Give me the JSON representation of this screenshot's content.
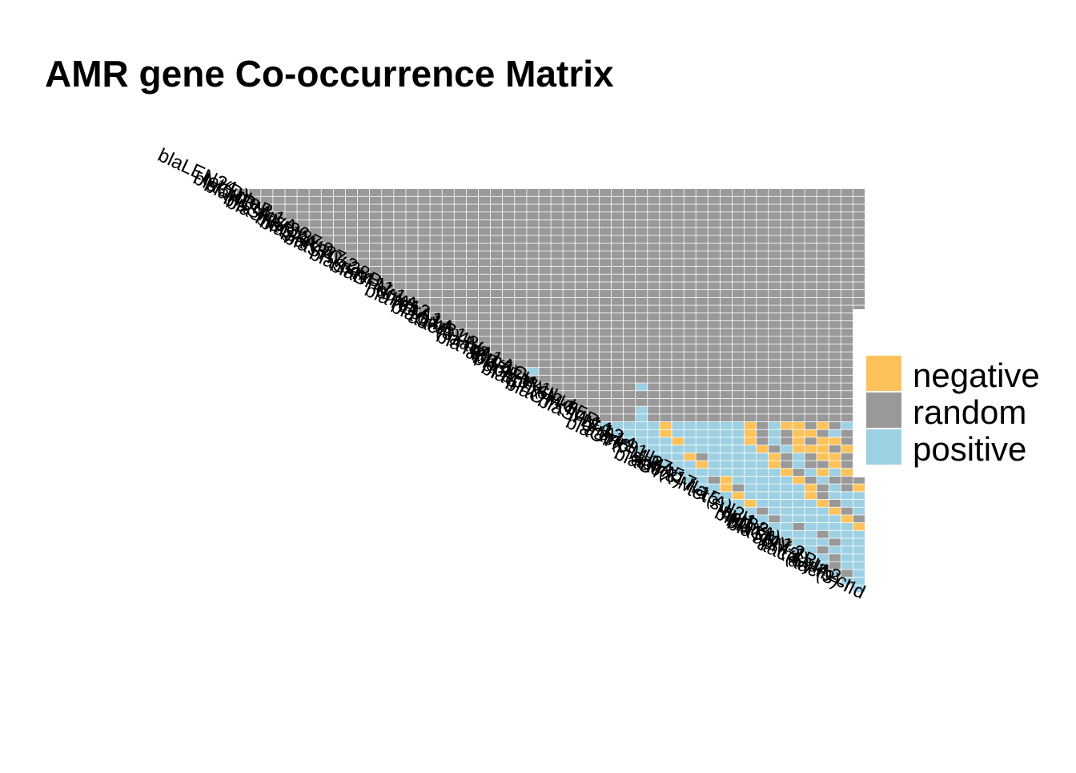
{
  "chart_data": {
    "type": "heatmap",
    "title": "AMR gene Co-occurrence Matrix",
    "shape": "lower-triangle",
    "legend": {
      "position": "right",
      "entries": [
        {
          "label": "negative",
          "color": "#FDC35A"
        },
        {
          "label": "random",
          "color": "#999999"
        },
        {
          "label": "positive",
          "color": "#9ED0E3"
        }
      ]
    },
    "genes": [
      "aac(3)-IId",
      "aac(6')-Ib-cr",
      "aadA2",
      "aph(3')-Ia",
      "blaTEM-1B",
      "blaCMY-2",
      "blaOXA-1",
      "mph(A)",
      "catB3",
      "sul1",
      "sul2",
      "tet(A)",
      "blaCTX-M-15",
      "aac(3)-IIa",
      "dfrA17",
      "aadA5",
      "blaCTX-M-27",
      "aac(6')-Ib",
      "qnrS1",
      "dfrA14",
      "blaSHV-12",
      "blaCTX-M-14",
      "floR",
      "blaCTX-M-55",
      "aph(6)-Id",
      "aph(3'')-Ib",
      "blaTEM-1",
      "aph(4)-Ia",
      "blaTEM-1C",
      "armA",
      "aadA1",
      "aac(3)-IVa",
      "blaOXA-48",
      "qnrB1",
      "blaTEM-1A",
      "dfrA1",
      "dfrA12",
      "oqxA",
      "blaSHV-1",
      "blaSHV-11",
      "oqxB",
      "blaSHV-28",
      "blaKPC-2",
      "blaSHV-27",
      "blaOXA-9",
      "blaSHV-187",
      "blaSHV-26",
      "fosA",
      "blaNDM-1",
      "blaOKP-B",
      "ble",
      "tet(D)",
      "blaLEN24"
    ],
    "n_genes": 53,
    "matrix_encoding": "cells[i] lists column codes for row i (columns 0..i-1); 0=negative, 1=random, 2=positive",
    "cells": [
      "",
      "2",
      "22",
      "212",
      "2122",
      "22122",
      "221222",
      "1222122",
      "22221222",
      "222122220",
      "2212222201",
      "22122222012",
      "220222220122",
      "2202222201222",
      "22012222201210",
      "221022222012111",
      "2222222220120201",
      "22202222201211012",
      "222012222201210012",
      "2222222222012000101",
      "22220222220121010012",
      "222202222220121001210",
      "2222202222220120010122",
      "11112111111111111111111",
      "111112111111111111111111",
      "1111111111111111111111111",
      "11111111111111111111111111",
      "111111112111111111111111111",
      "1111111111111111111111111111",
      "12111111111111111111111111111",
      "111111111111111111111111111111",
      "1111111111111111111111111111111",
      "11111111111111111111111111111111",
      "111111111111111111111111111111111",
      "1111111111111111111111111111111111",
      "11111111111111111111111111111111111",
      "111111111111111111111111111111111111",
      "1111111111111111111111111111111111111",
      "11111111111111111111111111111111111111",
      "111111111111111111111111111111111111111",
      "1111111111111111111111111111111111111111",
      "11111111111111111111111111111111111111111",
      "111111111111111111111111111111111111111111",
      "1111111111111111111111111111111111111111111",
      "11111111111111111111111111111111111111111111",
      "111111111111111111111111111111111111111111111",
      "1111111111111111111111111111111111111111111111",
      "11111111111111111111111111111111111111111111111",
      "111111111111111111111111111111111111111111111111",
      "1111111111111111111111111111111111111111111111111",
      "11111111111111111111111111111111111111111111111111",
      "111111111111111111111111111111111111111111111111111",
      "1111111111111111111111111111111111111111111111111111"
    ]
  }
}
